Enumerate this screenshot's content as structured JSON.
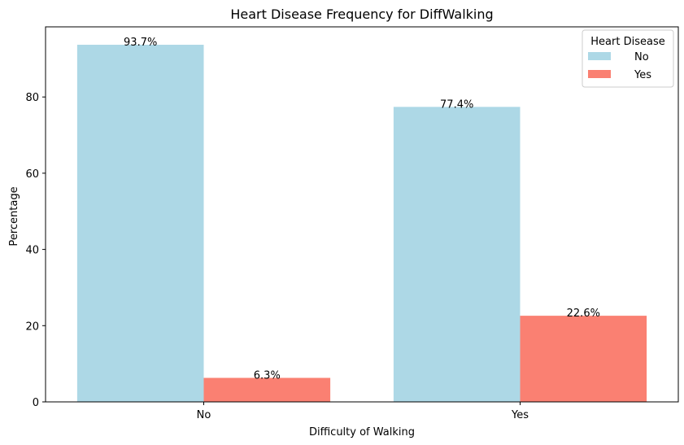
{
  "chart_data": {
    "type": "bar",
    "title": "Heart Disease Frequency for DiffWalking",
    "xlabel": "Difficulty of Walking",
    "ylabel": "Percentage",
    "categories": [
      "No",
      "Yes"
    ],
    "series": [
      {
        "name": "No",
        "values": [
          93.7,
          77.4
        ],
        "color": "#add8e6",
        "labels": [
          "93.7%",
          "77.4%"
        ]
      },
      {
        "name": "Yes",
        "values": [
          6.3,
          22.6
        ],
        "color": "#fa8072",
        "labels": [
          "6.3%",
          "22.6%"
        ]
      }
    ],
    "yticks": [
      0,
      20,
      40,
      60,
      80
    ],
    "ylim": [
      0,
      98.4
    ],
    "legend": {
      "title": "Heart Disease",
      "position": "top-right"
    },
    "grid": false
  }
}
